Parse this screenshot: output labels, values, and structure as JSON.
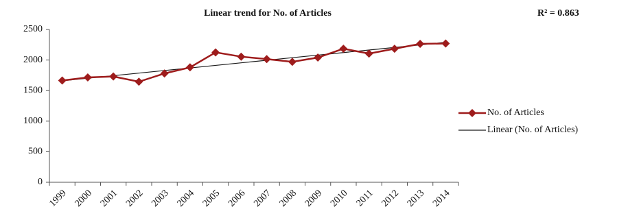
{
  "chart_data": {
    "type": "line",
    "title": "Linear trend for No. of Articles",
    "annotation": "R² = 0.863",
    "categories": [
      "1999",
      "2000",
      "2001",
      "2002",
      "2003",
      "2004",
      "2005",
      "2006",
      "2007",
      "2008",
      "2009",
      "2010",
      "2011",
      "2012",
      "2013",
      "2014"
    ],
    "series": [
      {
        "name": "No. of Articles",
        "color": "#9e1c1c",
        "marker": "diamond",
        "values": [
          1665,
          1715,
          1730,
          1645,
          1780,
          1880,
          2125,
          2055,
          2015,
          1970,
          2040,
          2185,
          2105,
          2185,
          2265,
          2270
        ]
      },
      {
        "name": "Linear (No. of Articles)",
        "color": "#1a1a1a",
        "values": [
          1660,
          1702,
          1744,
          1786,
          1828,
          1870,
          1912,
          1954,
          1996,
          2038,
          2080,
          2122,
          2164,
          2206,
          2248,
          2290
        ]
      }
    ],
    "ylim": [
      0,
      2500
    ],
    "yticks": [
      0,
      500,
      1000,
      1500,
      2000,
      2500
    ],
    "grid": false,
    "legend": "right"
  }
}
